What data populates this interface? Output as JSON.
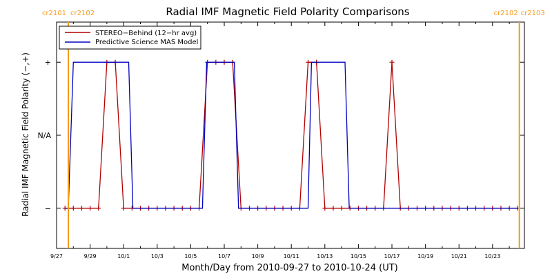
{
  "chart_data": {
    "type": "line",
    "title": "Radial IMF Magnetic Field Polarity Comparisons",
    "xlabel": "Month/Day from 2010-09-27 to 2010-10-24 (UT)",
    "ylabel": "Radial IMF Magnetic Field Polarity (−,+)",
    "x_units": "days after 2010-09-27 00:00 UT",
    "xlim": [
      0,
      27.9
    ],
    "ylim": [
      -1.55,
      1.55
    ],
    "x_ticks": [
      {
        "label": "9/27",
        "x": 0
      },
      {
        "label": "9/29",
        "x": 2
      },
      {
        "label": "10/1",
        "x": 4
      },
      {
        "label": "10/3",
        "x": 6
      },
      {
        "label": "10/5",
        "x": 8
      },
      {
        "label": "10/7",
        "x": 10
      },
      {
        "label": "10/9",
        "x": 12
      },
      {
        "label": "10/11",
        "x": 14
      },
      {
        "label": "10/13",
        "x": 16
      },
      {
        "label": "10/15",
        "x": 18
      },
      {
        "label": "10/17",
        "x": 20
      },
      {
        "label": "10/19",
        "x": 22
      },
      {
        "label": "10/21",
        "x": 24
      },
      {
        "label": "10/23",
        "x": 26
      }
    ],
    "y_ticks": [
      {
        "label": "+",
        "y": 1
      },
      {
        "label": "N/A",
        "y": 0
      },
      {
        "label": "−",
        "y": -1
      }
    ],
    "carrington": [
      {
        "x": 0.7,
        "left": "cr2101",
        "right": "cr2102"
      },
      {
        "x": 27.6,
        "left": "cr2102",
        "right": "cr2103"
      }
    ],
    "legend": {
      "position": "top-left",
      "entries": [
        "STEREO−Behind (12−hr avg)",
        "Predictive Science MAS Model"
      ]
    },
    "series": [
      {
        "name": "STEREO−Behind (12−hr avg)",
        "color": "#b00000",
        "marker": "plus",
        "x": [
          0.5,
          1.0,
          1.5,
          2.0,
          2.5,
          3.0,
          3.5,
          4.0,
          4.5,
          5.0,
          5.5,
          6.0,
          6.5,
          7.0,
          7.5,
          8.0,
          8.5,
          9.0,
          9.5,
          10.0,
          10.5,
          11.0,
          11.5,
          12.0,
          12.5,
          13.0,
          13.5,
          14.0,
          14.5,
          15.0,
          15.5,
          16.0,
          16.5,
          17.0,
          17.5,
          18.0,
          18.5,
          19.0,
          19.5,
          20.0,
          20.5,
          21.0,
          21.5,
          22.0,
          22.5,
          23.0,
          23.5,
          24.0,
          24.5,
          25.0,
          25.5,
          26.0,
          26.5,
          27.0,
          27.5
        ],
        "y": [
          -1,
          -1,
          -1,
          -1,
          -1,
          1,
          1,
          -1,
          -1,
          -1,
          -1,
          -1,
          -1,
          -1,
          -1,
          -1,
          -1,
          1,
          1,
          1,
          1,
          -1,
          -1,
          -1,
          -1,
          -1,
          -1,
          -1,
          -1,
          1,
          1,
          -1,
          -1,
          -1,
          -1,
          -1,
          -1,
          -1,
          -1,
          1,
          -1,
          -1,
          -1,
          -1,
          -1,
          -1,
          -1,
          -1,
          -1,
          -1,
          -1,
          -1,
          -1,
          -1,
          -1
        ]
      },
      {
        "name": "Predictive Science MAS Model",
        "color": "#0000c0",
        "marker": "none",
        "x": [
          0.5,
          0.7,
          1.0,
          4.3,
          4.55,
          8.7,
          8.95,
          10.6,
          10.85,
          15.0,
          15.2,
          17.2,
          17.45,
          27.5
        ],
        "y": [
          -1,
          -1,
          1,
          1,
          -1,
          -1,
          1,
          1,
          -1,
          -1,
          1,
          1,
          -1,
          -1
        ]
      }
    ]
  }
}
